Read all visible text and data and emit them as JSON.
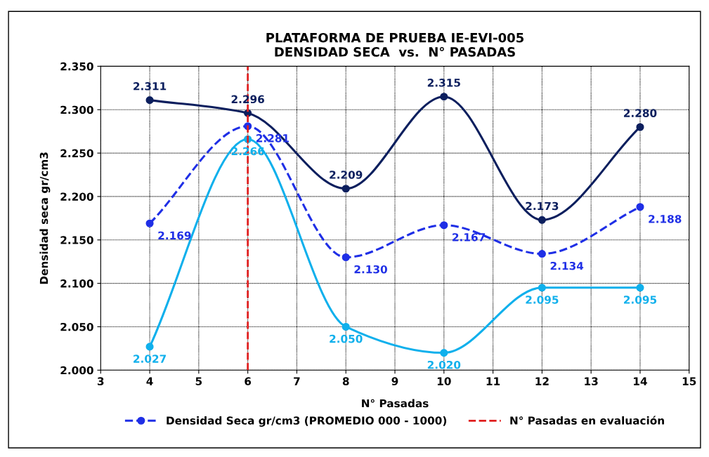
{
  "chart_data": {
    "type": "line",
    "title": "PLATAFORMA DE PRUEBA IE-EVI-005\nDENSIDAD SECA  vs.  N° PASADAS",
    "xlabel": "N° Pasadas",
    "ylabel": "Densidad seca gr/cm3",
    "x": [
      4,
      6,
      8,
      10,
      12,
      14
    ],
    "series": [
      {
        "color": "#0c1f5e",
        "values": [
          2.311,
          2.296,
          2.209,
          2.315,
          2.173,
          2.28
        ],
        "value_labels": [
          "2.311",
          "2.296",
          "2.209",
          "2.315",
          "2.173",
          "2.280"
        ]
      },
      {
        "name": "Densidad Seca gr/cm3 (PROMEDIO 000 - 1000)",
        "color": "#1f2fe6",
        "line_style": "dashed",
        "values": [
          2.169,
          2.281,
          2.13,
          2.167,
          2.134,
          2.188
        ],
        "value_labels": [
          "2.169",
          "2.281",
          "2.130",
          "2.167",
          "2.134",
          "2.188"
        ]
      },
      {
        "color": "#10b0ec",
        "values": [
          2.027,
          2.266,
          2.05,
          2.02,
          2.095,
          2.095
        ],
        "value_labels": [
          "2.027",
          "2.266",
          "2.050",
          "2.020",
          "2.095",
          "2.095"
        ]
      }
    ],
    "xlim": [
      3,
      15
    ],
    "xticks": [
      3,
      4,
      5,
      6,
      7,
      8,
      9,
      10,
      11,
      12,
      13,
      14,
      15
    ],
    "ylim": [
      2.0,
      2.35
    ],
    "yticks": [
      {
        "value": 2.0,
        "label": "2.000"
      },
      {
        "value": 2.05,
        "label": "2.050"
      },
      {
        "value": 2.1,
        "label": "2.100"
      },
      {
        "value": 2.15,
        "label": "2.150"
      },
      {
        "value": 2.2,
        "label": "2.200"
      },
      {
        "value": 2.25,
        "label": "2.250"
      },
      {
        "value": 2.3,
        "label": "2.300"
      },
      {
        "value": 2.35,
        "label": "2.350"
      }
    ],
    "ref_lines": [
      {
        "axis": "x",
        "value": 6,
        "label": "N° Pasadas en evaluación",
        "color": "#e02020",
        "line_style": "dashed"
      }
    ],
    "grid": true,
    "legend": "bottom",
    "marker": "circle",
    "line_style": "solid"
  }
}
